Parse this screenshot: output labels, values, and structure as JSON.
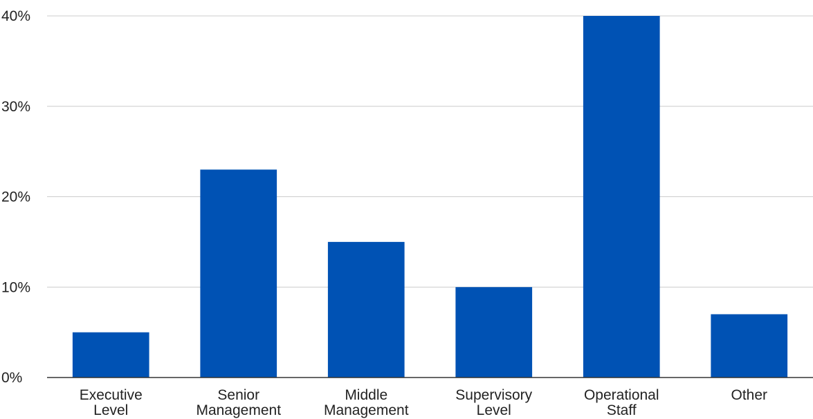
{
  "chart_data": {
    "type": "bar",
    "title": "",
    "xlabel": "",
    "ylabel": "",
    "categories": [
      [
        "Executive",
        "Level"
      ],
      [
        "Senior",
        "Management"
      ],
      [
        "Middle",
        "Management"
      ],
      [
        "Supervisory",
        "Level"
      ],
      [
        "Operational",
        "Staff"
      ],
      [
        "Other"
      ]
    ],
    "values": [
      5,
      23,
      15,
      10,
      40,
      7
    ],
    "ylim": [
      0,
      40
    ],
    "yticks": [
      0,
      10,
      20,
      30,
      40
    ],
    "ytick_labels": [
      "0%",
      "10%",
      "20%",
      "30%",
      "40%"
    ],
    "bar_color": "#0052b4",
    "grid": true,
    "legend": "none"
  }
}
